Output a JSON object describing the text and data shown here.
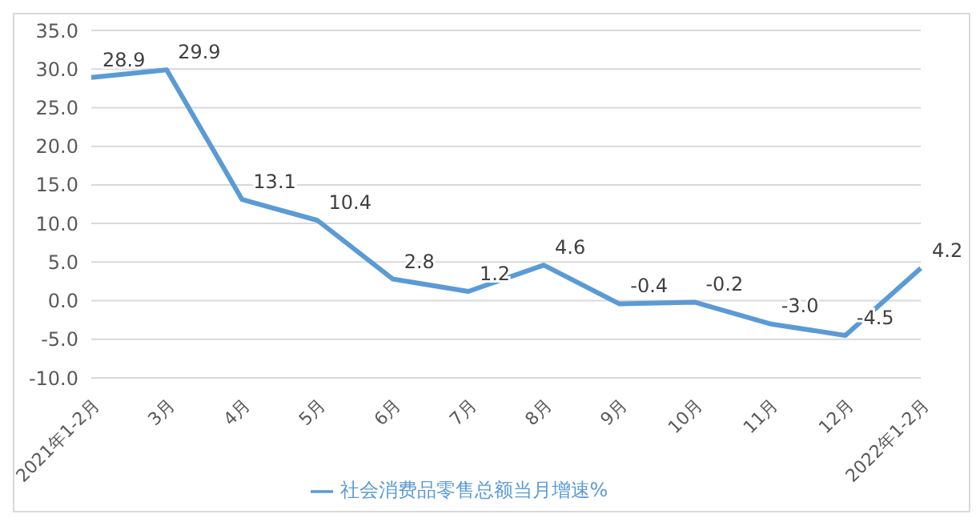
{
  "chart_data": {
    "type": "line",
    "categories": [
      "2021年1-2月",
      "3月",
      "4月",
      "5月",
      "6月",
      "7月",
      "8月",
      "9月",
      "10月",
      "11月",
      "12月",
      "2022年1-2月"
    ],
    "series": [
      {
        "name": "社会消费品零售总额当月增速%",
        "color": "#5b9bd5",
        "values": [
          28.9,
          29.9,
          13.1,
          10.4,
          2.8,
          1.2,
          4.6,
          -0.4,
          -0.2,
          -3.0,
          -4.5,
          4.2
        ]
      }
    ],
    "ylim": [
      -10,
      35
    ],
    "yticks": [
      {
        "value": -10,
        "label": "-10.0"
      },
      {
        "value": -5,
        "label": "-5.0"
      },
      {
        "value": 0,
        "label": "0.0"
      },
      {
        "value": 5,
        "label": "5.0"
      },
      {
        "value": 10,
        "label": "10.0"
      },
      {
        "value": 15,
        "label": "15.0"
      },
      {
        "value": 20,
        "label": "20.0"
      },
      {
        "value": 25,
        "label": "25.0"
      },
      {
        "value": 30,
        "label": "30.0"
      },
      {
        "value": 35,
        "label": "35.0"
      }
    ],
    "value_labels": [
      "28.9",
      "29.9",
      "13.1",
      "10.4",
      "2.8",
      "1.2",
      "4.6",
      "-0.4",
      "-0.2",
      "-3.0",
      "-4.5",
      "4.2"
    ],
    "grid": "y",
    "legend": "bottom",
    "marker": "none",
    "line_style": "solid"
  }
}
